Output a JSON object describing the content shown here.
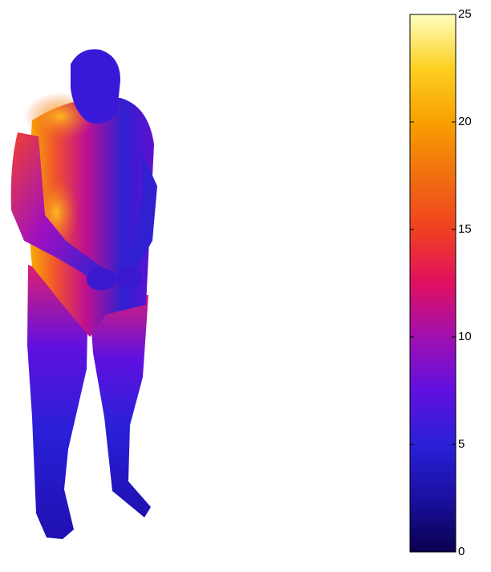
{
  "chart_data": {
    "type": "surface",
    "clim": [
      0,
      25
    ],
    "cticks": [
      0,
      5,
      10,
      15,
      20,
      25
    ],
    "colormap": [
      "#0a0050",
      "#1a10a0",
      "#2a20d8",
      "#6010e0",
      "#a010b0",
      "#e01060",
      "#f04020",
      "#f07010",
      "#f8a000",
      "#fcd020",
      "#ffffc0"
    ]
  }
}
